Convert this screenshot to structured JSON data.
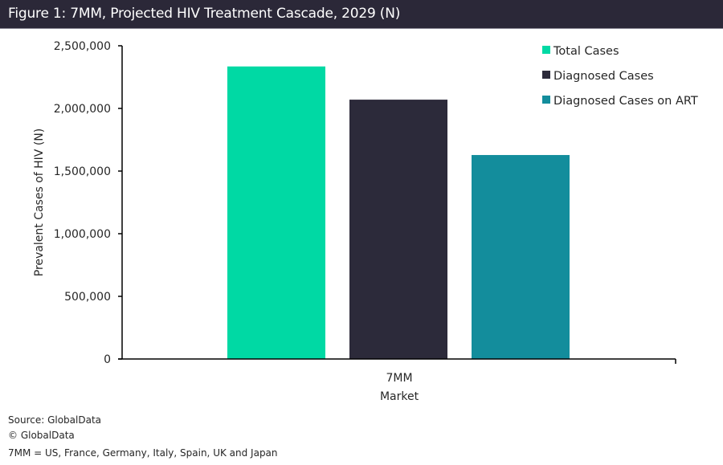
{
  "header": {
    "title": "Figure 1: 7MM, Projected HIV Treatment Cascade, 2029 (N)"
  },
  "chart_data": {
    "type": "bar",
    "title": "Figure 1: 7MM, Projected HIV Treatment Cascade, 2029 (N)",
    "categories": [
      "7MM"
    ],
    "series": [
      {
        "name": "Total Cases",
        "values": [
          2335000
        ],
        "color": "#00d9a4"
      },
      {
        "name": "Diagnosed Cases",
        "values": [
          2070000
        ],
        "color": "#2c2a3a"
      },
      {
        "name": "Diagnosed Cases on ART",
        "values": [
          1628000
        ],
        "color": "#138d9c"
      }
    ],
    "xlabel": "Market",
    "ylabel": "Prevalent Cases of HIV (N)",
    "ylim": [
      0,
      2500000
    ],
    "yticks": [
      0,
      500000,
      1000000,
      1500000,
      2000000,
      2500000
    ],
    "ytick_labels": [
      "0",
      "500,000",
      "1,000,000",
      "1,500,000",
      "2,000,000",
      "2,500,000"
    ],
    "grid": false,
    "legend": "top-right"
  },
  "footer": {
    "source": "Source: GlobalData",
    "copyright": "© GlobalData",
    "note": "7MM = US, France, Germany, Italy, Spain, UK and Japan"
  }
}
